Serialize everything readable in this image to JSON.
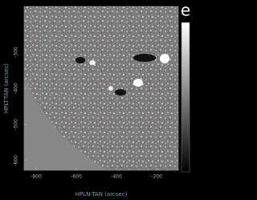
{
  "chart_data": {
    "type": "image",
    "panel_label": "e",
    "x_label": "HPLN-TAN (arcsec)",
    "y_label": "HPLT-TAN (arcsec)",
    "xlim": [
      -860,
      -92
    ],
    "xticks": [
      -800,
      -600,
      -400,
      -200
    ],
    "ylim": [
      -627,
      -173
    ],
    "yticks": [
      -600,
      -500,
      -400,
      -300
    ]
  }
}
